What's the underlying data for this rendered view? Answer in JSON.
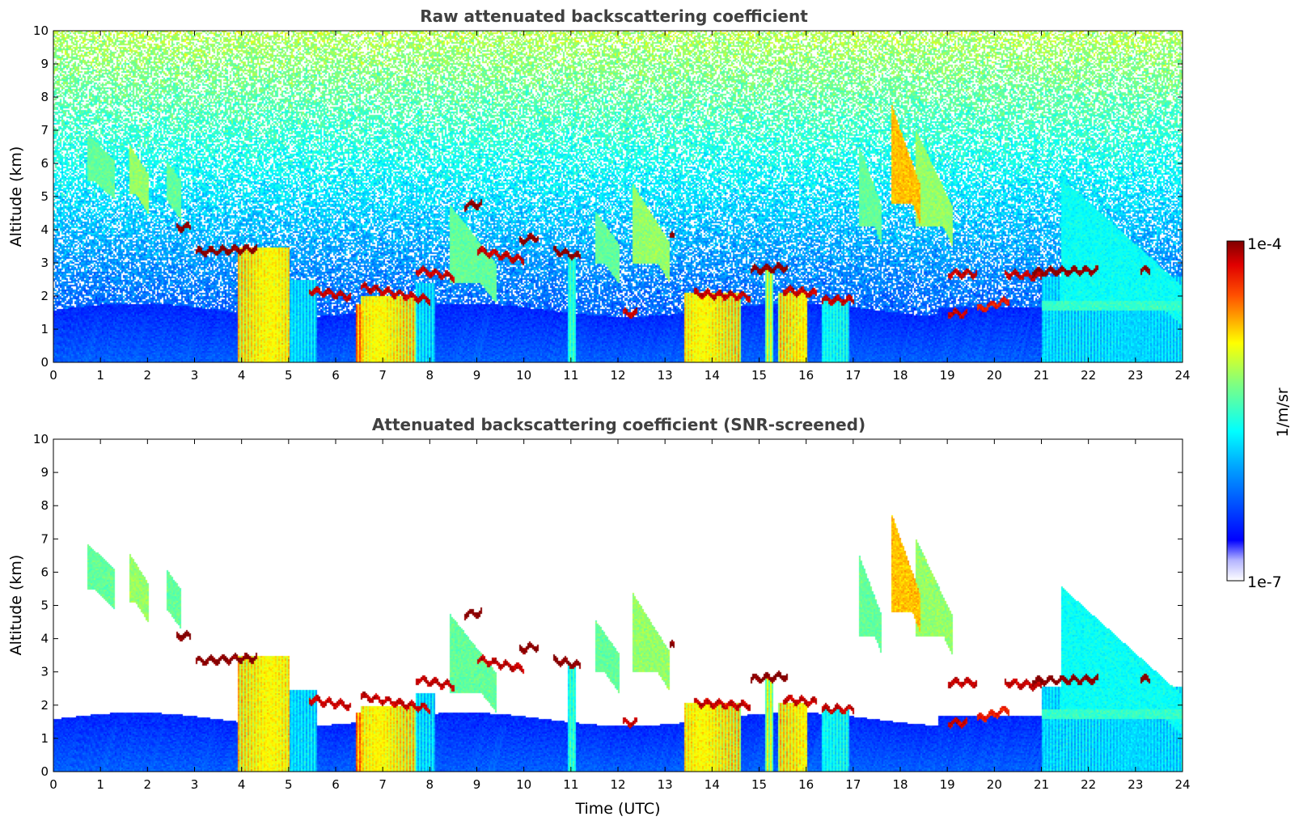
{
  "chart_data": [
    {
      "type": "heatmap",
      "title": "Raw attenuated backscattering coefficient",
      "xlabel": "",
      "ylabel": "Altitude (km)",
      "xlim": [
        0,
        24
      ],
      "ylim": [
        0,
        10
      ],
      "x_ticks": [
        "0",
        "1",
        "2",
        "3",
        "4",
        "5",
        "6",
        "7",
        "8",
        "9",
        "10",
        "11",
        "12",
        "13",
        "14",
        "15",
        "16",
        "17",
        "18",
        "19",
        "20",
        "21",
        "22",
        "23",
        "24"
      ],
      "y_ticks": [
        "0",
        "1",
        "2",
        "3",
        "4",
        "5",
        "6",
        "7",
        "8",
        "9",
        "10"
      ],
      "screened": false
    },
    {
      "type": "heatmap",
      "title": "Attenuated backscattering coefficient (SNR-screened)",
      "xlabel": "Time (UTC)",
      "ylabel": "Altitude (km)",
      "xlim": [
        0,
        24
      ],
      "ylim": [
        0,
        10
      ],
      "x_ticks": [
        "0",
        "1",
        "2",
        "3",
        "4",
        "5",
        "6",
        "7",
        "8",
        "9",
        "10",
        "11",
        "12",
        "13",
        "14",
        "15",
        "16",
        "17",
        "18",
        "19",
        "20",
        "21",
        "22",
        "23",
        "24"
      ],
      "y_ticks": [
        "0",
        "1",
        "2",
        "3",
        "4",
        "5",
        "6",
        "7",
        "8",
        "9",
        "10"
      ],
      "screened": true
    }
  ],
  "colorbar": {
    "label": "1/m/sr",
    "max_label": "1e-4",
    "min_label": "1e-7",
    "scale": "log",
    "range": [
      1e-07,
      0.0001
    ],
    "colormap": "jet"
  },
  "features": {
    "cloud_layers": [
      {
        "t0": 3.0,
        "t1": 4.3,
        "h": 3.45,
        "hb": 3.35,
        "v": 1.0
      },
      {
        "t0": 2.6,
        "t1": 2.9,
        "h": 4.1,
        "hb": 4.1,
        "v": 1.0
      },
      {
        "t0": 5.4,
        "t1": 6.3,
        "h": 2.0,
        "hb": 2.2,
        "v": 0.95
      },
      {
        "t0": 6.5,
        "t1": 8.0,
        "h": 1.9,
        "hb": 2.3,
        "v": 0.95
      },
      {
        "t0": 7.7,
        "t1": 8.5,
        "h": 2.6,
        "hb": 2.8,
        "v": 0.95
      },
      {
        "t0": 8.7,
        "t1": 9.1,
        "h": 4.8,
        "hb": 4.75,
        "v": 1.0
      },
      {
        "t0": 9.0,
        "t1": 10.0,
        "h": 3.1,
        "hb": 3.4,
        "v": 0.95
      },
      {
        "t0": 9.9,
        "t1": 10.3,
        "h": 3.8,
        "hb": 3.7,
        "v": 1.0
      },
      {
        "t0": 10.6,
        "t1": 11.2,
        "h": 3.2,
        "hb": 3.4,
        "v": 1.0
      },
      {
        "t0": 12.1,
        "t1": 12.4,
        "h": 1.5,
        "hb": 1.5,
        "v": 0.95
      },
      {
        "t0": 13.1,
        "t1": 13.2,
        "h": 3.8,
        "hb": 3.8,
        "v": 1.0
      },
      {
        "t0": 13.6,
        "t1": 14.8,
        "h": 2.0,
        "hb": 2.1,
        "v": 0.95
      },
      {
        "t0": 14.8,
        "t1": 15.6,
        "h": 2.9,
        "hb": 2.8,
        "v": 1.0
      },
      {
        "t0": 15.5,
        "t1": 16.2,
        "h": 2.1,
        "hb": 2.2,
        "v": 0.95
      },
      {
        "t0": 16.3,
        "t1": 17.0,
        "h": 1.9,
        "hb": 1.9,
        "v": 0.95
      },
      {
        "t0": 19.0,
        "t1": 19.6,
        "h": 2.7,
        "hb": 2.7,
        "v": 0.95
      },
      {
        "t0": 19.0,
        "t1": 19.4,
        "h": 1.5,
        "hb": 1.5,
        "v": 0.95
      },
      {
        "t0": 19.6,
        "t1": 20.3,
        "h": 1.9,
        "hb": 1.6,
        "v": 0.9
      },
      {
        "t0": 20.2,
        "t1": 21.0,
        "h": 2.6,
        "hb": 2.7,
        "v": 0.95
      },
      {
        "t0": 20.8,
        "t1": 22.2,
        "h": 2.8,
        "hb": 2.75,
        "v": 1.0
      },
      {
        "t0": 23.1,
        "t1": 23.3,
        "h": 2.8,
        "hb": 2.8,
        "v": 1.0
      }
    ],
    "cirrus": [
      {
        "t0": 0.7,
        "t1": 1.3,
        "h0": 5.5,
        "h1": 6.3,
        "v": 0.55
      },
      {
        "t0": 1.6,
        "t1": 2.0,
        "h0": 5.1,
        "h1": 6.0,
        "v": 0.6
      },
      {
        "t0": 2.4,
        "t1": 2.7,
        "h0": 4.9,
        "h1": 5.5,
        "v": 0.55
      },
      {
        "t0": 8.4,
        "t1": 9.4,
        "h0": 2.4,
        "h1": 4.2,
        "v": 0.55
      },
      {
        "t0": 11.5,
        "t1": 12.0,
        "h0": 3.0,
        "h1": 4.0,
        "v": 0.55
      },
      {
        "t0": 12.3,
        "t1": 13.1,
        "h0": 3.0,
        "h1": 4.8,
        "v": 0.6
      },
      {
        "t0": 17.1,
        "t1": 17.6,
        "h0": 4.1,
        "h1": 6.0,
        "v": 0.55
      },
      {
        "t0": 17.8,
        "t1": 18.4,
        "h0": 4.8,
        "h1": 7.2,
        "v": 0.75
      },
      {
        "t0": 18.3,
        "t1": 19.1,
        "h0": 4.1,
        "h1": 6.5,
        "v": 0.6
      },
      {
        "t0": 21.4,
        "t1": 24.0,
        "h0": 1.7,
        "h1": 5.0,
        "v": 0.45
      }
    ],
    "precip": [
      {
        "t0": 3.9,
        "t1": 5.0,
        "top": 3.5,
        "v": 0.8
      },
      {
        "t0": 4.9,
        "t1": 5.6,
        "top": 2.5,
        "v": 0.45
      },
      {
        "t0": 6.4,
        "t1": 6.55,
        "top": 1.8,
        "v": 0.9
      },
      {
        "t0": 6.5,
        "t1": 7.7,
        "top": 2.0,
        "v": 0.8
      },
      {
        "t0": 7.7,
        "t1": 8.1,
        "top": 2.4,
        "v": 0.45
      },
      {
        "t0": 10.9,
        "t1": 11.1,
        "top": 3.2,
        "v": 0.55
      },
      {
        "t0": 13.4,
        "t1": 14.6,
        "top": 2.1,
        "v": 0.8
      },
      {
        "t0": 15.1,
        "t1": 15.3,
        "top": 2.8,
        "v": 0.7
      },
      {
        "t0": 15.4,
        "t1": 16.0,
        "top": 2.1,
        "v": 0.8
      },
      {
        "t0": 16.3,
        "t1": 16.9,
        "top": 1.9,
        "v": 0.5
      },
      {
        "t0": 21.0,
        "t1": 24.0,
        "top": 2.6,
        "v": 0.45
      }
    ]
  }
}
